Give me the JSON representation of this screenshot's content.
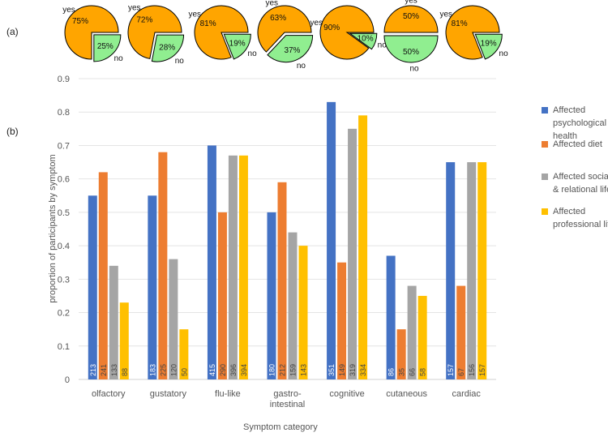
{
  "panel_labels": {
    "a": "(a)",
    "b": "(b)"
  },
  "pies": [
    {
      "yes": 75,
      "no": 25,
      "yes_label": "yes",
      "no_label": "no",
      "yes_text": "75%",
      "no_text": "25%"
    },
    {
      "yes": 72,
      "no": 28,
      "yes_label": "yes",
      "no_label": "no",
      "yes_text": "72%",
      "no_text": "28%"
    },
    {
      "yes": 81,
      "no": 19,
      "yes_label": "yes",
      "no_label": "no",
      "yes_text": "81%",
      "no_text": "19%"
    },
    {
      "yes": 63,
      "no": 37,
      "yes_label": "yes",
      "no_label": "no",
      "yes_text": "63%",
      "no_text": "37%"
    },
    {
      "yes": 90,
      "no": 10,
      "yes_label": "yes",
      "no_label": "no",
      "yes_text": "90%",
      "no_text": "10%"
    },
    {
      "yes": 50,
      "no": 50,
      "yes_label": "yes",
      "no_label": "no",
      "yes_text": "50%",
      "no_text": "50%"
    },
    {
      "yes": 81,
      "no": 19,
      "yes_label": "yes",
      "no_label": "no",
      "yes_text": "81%",
      "no_text": "19%"
    }
  ],
  "colors": {
    "yes": "#FFA500",
    "no": "#90EE90",
    "series": [
      "#4472C4",
      "#ED7D31",
      "#A5A5A5",
      "#FFC000"
    ]
  },
  "chart_data": {
    "type": "bar",
    "xlabel": "Symptom category",
    "ylabel": "proportion of participants by symptom",
    "ylim": [
      0,
      0.9
    ],
    "yticks": [
      "0",
      "0.1",
      "0.2",
      "0.3",
      "0.4",
      "0.5",
      "0.6",
      "0.7",
      "0.8",
      "0.9"
    ],
    "grid": true,
    "legend_position": "right",
    "categories": [
      "olfactory",
      "gustatory",
      "flu-like",
      "gastro-\nintestinal",
      "cognitive",
      "cutaneous",
      "cardiac"
    ],
    "series": [
      {
        "name": "Affected psychological health",
        "values": [
          0.55,
          0.55,
          0.7,
          0.5,
          0.83,
          0.37,
          0.65
        ],
        "counts": [
          "213",
          "183",
          "415",
          "180",
          "351",
          "86",
          "157"
        ]
      },
      {
        "name": "Affected diet",
        "values": [
          0.62,
          0.68,
          0.5,
          0.59,
          0.35,
          0.15,
          0.28
        ],
        "counts": [
          "241",
          "225",
          "290",
          "212",
          "149",
          "35",
          "67"
        ]
      },
      {
        "name": "Affected social & relational life",
        "values": [
          0.34,
          0.36,
          0.67,
          0.44,
          0.75,
          0.28,
          0.65
        ],
        "counts": [
          "133",
          "120",
          "396",
          "159",
          "319",
          "66",
          "156"
        ]
      },
      {
        "name": "Affected professional life",
        "values": [
          0.23,
          0.15,
          0.67,
          0.4,
          0.79,
          0.25,
          0.65
        ],
        "counts": [
          "88",
          "50",
          "394",
          "143",
          "334",
          "58",
          "157"
        ]
      }
    ]
  }
}
